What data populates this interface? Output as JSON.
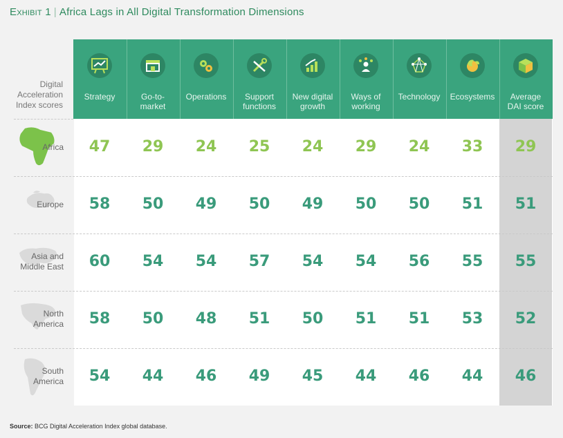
{
  "title": {
    "exhibit": "Exhibit 1",
    "separator": "|",
    "text": "Africa Lags in All Digital Transformation Dimensions"
  },
  "row_header_label": "Digital\nAcceleration\nIndex scores",
  "columns": [
    {
      "label": "Strategy",
      "icon": "strategy-board-icon"
    },
    {
      "label": "Go-to-\nmarket",
      "icon": "storefront-icon"
    },
    {
      "label": "Operations",
      "icon": "gears-icon"
    },
    {
      "label": "Support\nfunctions",
      "icon": "tools-icon"
    },
    {
      "label": "New digital\ngrowth",
      "icon": "growth-chart-icon"
    },
    {
      "label": "Ways of\nworking",
      "icon": "person-network-icon"
    },
    {
      "label": "Technology",
      "icon": "network-nodes-icon"
    },
    {
      "label": "Ecosystems",
      "icon": "globe-leaf-icon"
    },
    {
      "label": "Average\nDAI score",
      "icon": "cube-icon"
    }
  ],
  "colors": {
    "header_green": "#3aa47e",
    "icon_circle": "#2d8664",
    "africa_value": "#8fc553",
    "other_value": "#3a9b7b",
    "average_column_bg": "#d4d4d4",
    "title_green": "#2e8a5e"
  },
  "chart_data": {
    "type": "table",
    "title": "Africa Lags in All Digital Transformation Dimensions",
    "categories": [
      "Strategy",
      "Go-to-market",
      "Operations",
      "Support functions",
      "New digital growth",
      "Ways of working",
      "Technology",
      "Ecosystems",
      "Average DAI score"
    ],
    "rows": [
      {
        "region": "Africa",
        "label": "Africa",
        "map": "africa-map-icon",
        "values": [
          47,
          29,
          24,
          25,
          24,
          29,
          24,
          33,
          29
        ]
      },
      {
        "region": "Europe",
        "label": "Europe",
        "map": "europe-map-icon",
        "values": [
          58,
          50,
          49,
          50,
          49,
          50,
          50,
          51,
          51
        ]
      },
      {
        "region": "Asia and Middle East",
        "label": "Asia and\nMiddle East",
        "map": "asia-map-icon",
        "values": [
          60,
          54,
          54,
          57,
          54,
          54,
          56,
          55,
          55
        ]
      },
      {
        "region": "North America",
        "label": "North\nAmerica",
        "map": "north-america-map-icon",
        "values": [
          58,
          50,
          48,
          51,
          50,
          51,
          51,
          53,
          52
        ]
      },
      {
        "region": "South America",
        "label": "South\nAmerica",
        "map": "south-america-map-icon",
        "values": [
          54,
          44,
          46,
          49,
          45,
          44,
          46,
          44,
          46
        ]
      }
    ]
  },
  "source": {
    "prefix": "Source:",
    "text": "BCG Digital Acceleration Index global database."
  }
}
